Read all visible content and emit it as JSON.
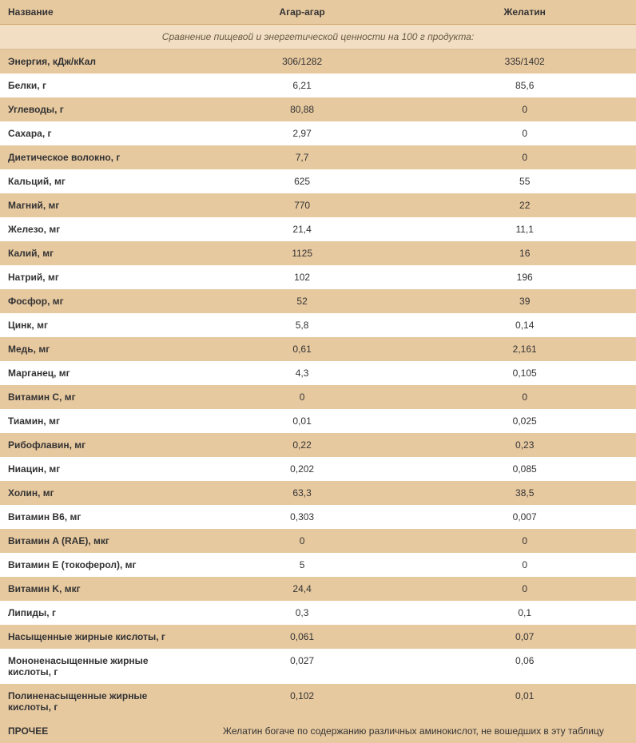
{
  "header": {
    "name": "Название",
    "col1": "Агар-агар",
    "col2": "Желатин"
  },
  "section_title": "Сравнение пищевой и энергетической ценности на 100 г продукта:",
  "rows": [
    {
      "name": "Энергия, кДж/кКал",
      "a": "306/1282",
      "b": "335/1402"
    },
    {
      "name": "Белки, г",
      "a": "6,21",
      "b": "85,6"
    },
    {
      "name": "Углеводы, г",
      "a": "80,88",
      "b": "0"
    },
    {
      "name": "Сахара, г",
      "a": "2,97",
      "b": "0"
    },
    {
      "name": "Диетическое волокно, г",
      "a": "7,7",
      "b": "0"
    },
    {
      "name": "Кальций, мг",
      "a": "625",
      "b": "55"
    },
    {
      "name": "Магний, мг",
      "a": "770",
      "b": "22"
    },
    {
      "name": "Железо, мг",
      "a": "21,4",
      "b": "11,1"
    },
    {
      "name": "Калий, мг",
      "a": "1125",
      "b": "16"
    },
    {
      "name": "Натрий, мг",
      "a": "102",
      "b": "196"
    },
    {
      "name": "Фосфор, мг",
      "a": "52",
      "b": "39"
    },
    {
      "name": "Цинк, мг",
      "a": "5,8",
      "b": "0,14"
    },
    {
      "name": "Медь, мг",
      "a": "0,61",
      "b": "2,161"
    },
    {
      "name": "Марганец, мг",
      "a": "4,3",
      "b": "0,105"
    },
    {
      "name": "Витамин C, мг",
      "a": "0",
      "b": "0"
    },
    {
      "name": "Тиамин, мг",
      "a": "0,01",
      "b": "0,025"
    },
    {
      "name": "Рибофлавин, мг",
      "a": "0,22",
      "b": "0,23"
    },
    {
      "name": "Ниацин, мг",
      "a": "0,202",
      "b": "0,085"
    },
    {
      "name": "Холин, мг",
      "a": "63,3",
      "b": "38,5"
    },
    {
      "name": "Витамин B6, мг",
      "a": "0,303",
      "b": "0,007"
    },
    {
      "name": "Витамин A (RAE), мкг",
      "a": "0",
      "b": "0"
    },
    {
      "name": "Витамин E (токоферол), мг",
      "a": "5",
      "b": "0"
    },
    {
      "name": "Витамин K, мкг",
      "a": "24,4",
      "b": "0"
    },
    {
      "name": "Липиды, г",
      "a": "0,3",
      "b": "0,1"
    },
    {
      "name": "Насыщенные жирные кислоты, г",
      "a": "0,061",
      "b": "0,07"
    },
    {
      "name": "Мононенасыщенные жирные кислоты, г",
      "a": "0,027",
      "b": "0,06"
    },
    {
      "name": "Полиненасыщенные жирные кислоты, г",
      "a": "0,102",
      "b": "0,01"
    }
  ],
  "footer": {
    "label": "ПРОЧЕЕ",
    "note": "Желатин богаче по содержанию различных аминокислот, не вошедших в эту таблицу"
  },
  "style": {
    "header_bg": "#e7c9a0",
    "section_bg": "#f1dec3",
    "row_alt_bg": "#e7c9a0",
    "row_bg": "#ffffff",
    "text_color": "#333333",
    "section_text": "#6a5a42",
    "font_size": 12
  }
}
